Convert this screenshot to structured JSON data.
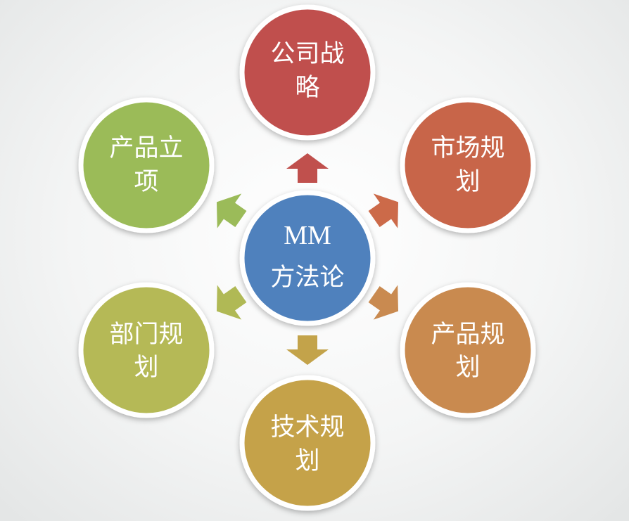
{
  "center": {
    "line1": "MM",
    "line2": "方法论",
    "color": "#4f81bd"
  },
  "nodes": [
    {
      "id": "strategy",
      "line1": "公司战",
      "line2": "略",
      "color": "#c0504d",
      "arrow_color": "#c0504d"
    },
    {
      "id": "market",
      "line1": "市场规",
      "line2": "划",
      "color": "#c8654a",
      "arrow_color": "#cc6a49"
    },
    {
      "id": "product-plan",
      "line1": "产品规",
      "line2": "划",
      "color": "#c98a50",
      "arrow_color": "#c98a50"
    },
    {
      "id": "tech-plan",
      "line1": "技术规",
      "line2": "划",
      "color": "#c5a24a",
      "arrow_color": "#c3a34a"
    },
    {
      "id": "dept-plan",
      "line1": "部门规",
      "line2": "划",
      "color": "#b5b957",
      "arrow_color": "#b0b955"
    },
    {
      "id": "product-init",
      "line1": "产品立",
      "line2": "项",
      "color": "#9bbb59",
      "arrow_color": "#9bbb59"
    }
  ]
}
